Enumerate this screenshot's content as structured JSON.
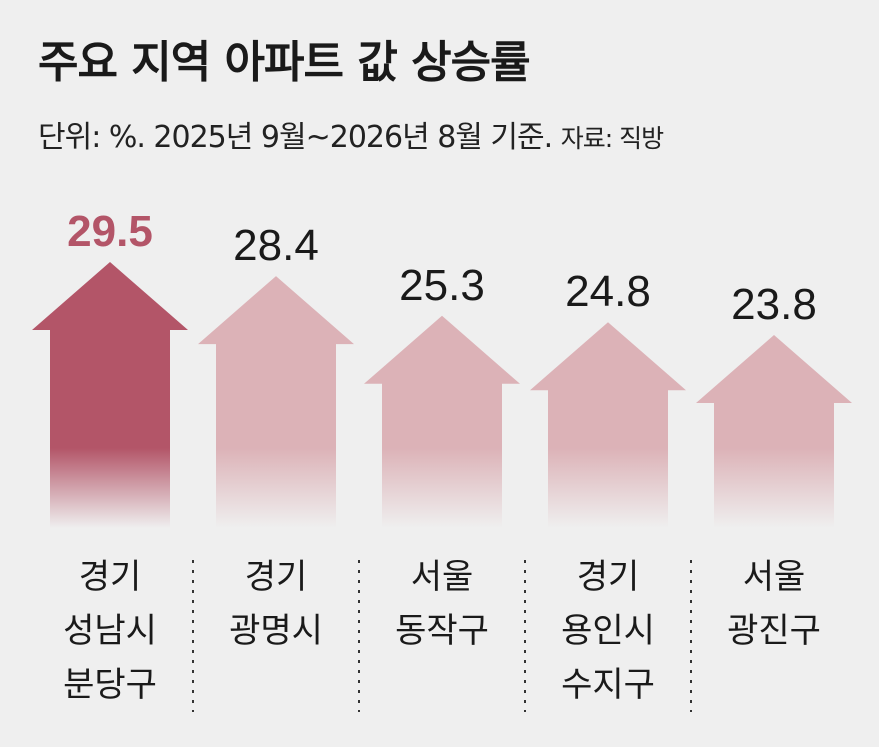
{
  "title": "주요 지역 아파트 값 상승률",
  "subtitle": "단위: %.  2025년 9월~2026년 8월 기준.",
  "source": "자료: 직방",
  "colors": {
    "highlight": "#b35568",
    "normal": "#dcb2b7",
    "highlight_text": "#b35568",
    "normal_text": "#1a1a1a",
    "background": "#efefef"
  },
  "chart_data": {
    "type": "bar",
    "style": "arrow",
    "unit": "%",
    "categories": [
      [
        "경기",
        "성남시",
        "분당구"
      ],
      [
        "경기",
        "광명시"
      ],
      [
        "서울",
        "동작구"
      ],
      [
        "경기",
        "용인시",
        "수지구"
      ],
      [
        "서울",
        "광진구"
      ]
    ],
    "values": [
      29.5,
      28.4,
      25.3,
      24.8,
      23.8
    ],
    "value_labels": [
      "29.5",
      "28.4",
      "25.3",
      "24.8",
      "23.8"
    ],
    "highlight_index": 0
  }
}
